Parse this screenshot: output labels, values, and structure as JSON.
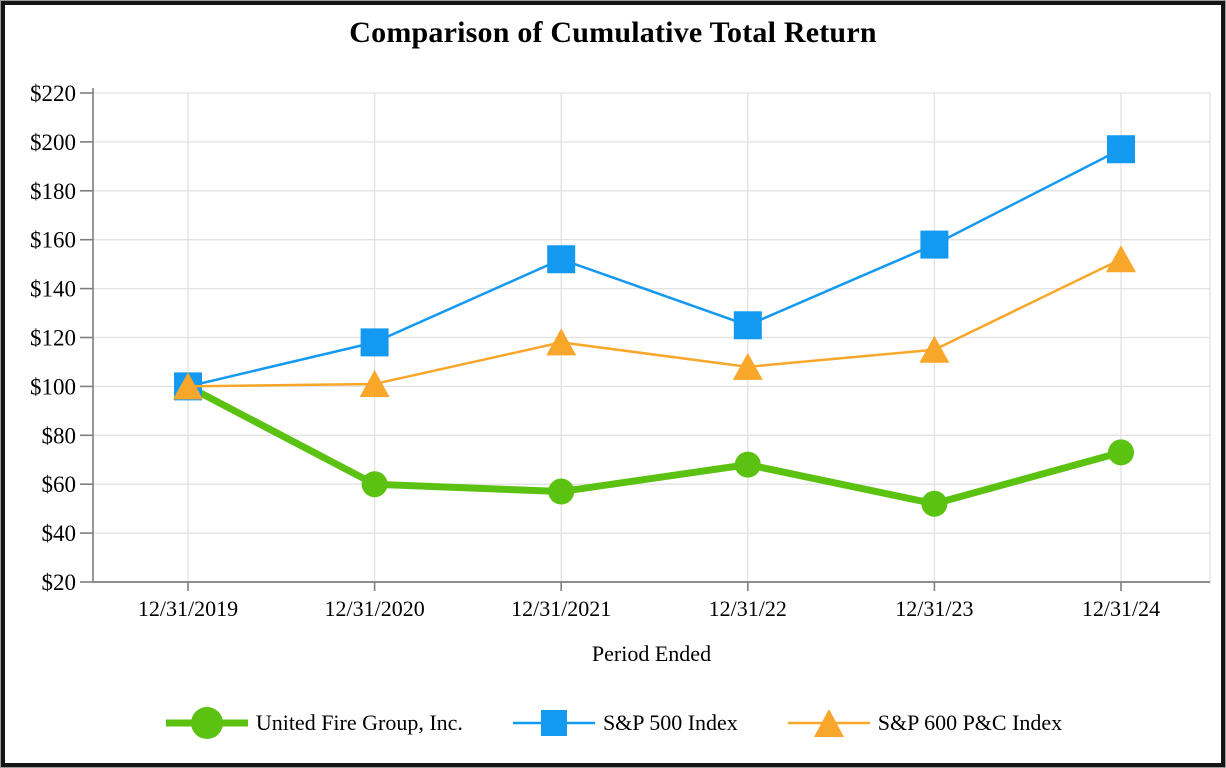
{
  "chart_data": {
    "type": "line",
    "title": "Comparison of Cumulative Total Return",
    "xlabel": "Period Ended",
    "categories": [
      "12/31/2019",
      "12/31/2020",
      "12/31/2021",
      "12/31/22",
      "12/31/23",
      "12/31/24"
    ],
    "series": [
      {
        "name": "United Fire Group, Inc.",
        "color": "#5BC212",
        "marker": "circle",
        "line_width": 7,
        "values": [
          100,
          60,
          57,
          68,
          52,
          73
        ]
      },
      {
        "name": "S&P 500 Index",
        "color": "#1499F0",
        "marker": "square",
        "line_width": 2.5,
        "values": [
          100,
          118,
          152,
          125,
          158,
          197
        ]
      },
      {
        "name": "S&P 600 P&C Index",
        "color": "#F9A72B",
        "marker": "triangle",
        "line_width": 2.5,
        "values": [
          100,
          101,
          118,
          108,
          115,
          152
        ]
      }
    ],
    "ylim": [
      20,
      220
    ],
    "y_tick_step": 20,
    "y_tick_prefix": "$",
    "grid": true,
    "legend_position": "bottom",
    "colors": {
      "gridline": "#E2E2E2",
      "axis": "#7F7F7F",
      "text": "#000000"
    }
  }
}
